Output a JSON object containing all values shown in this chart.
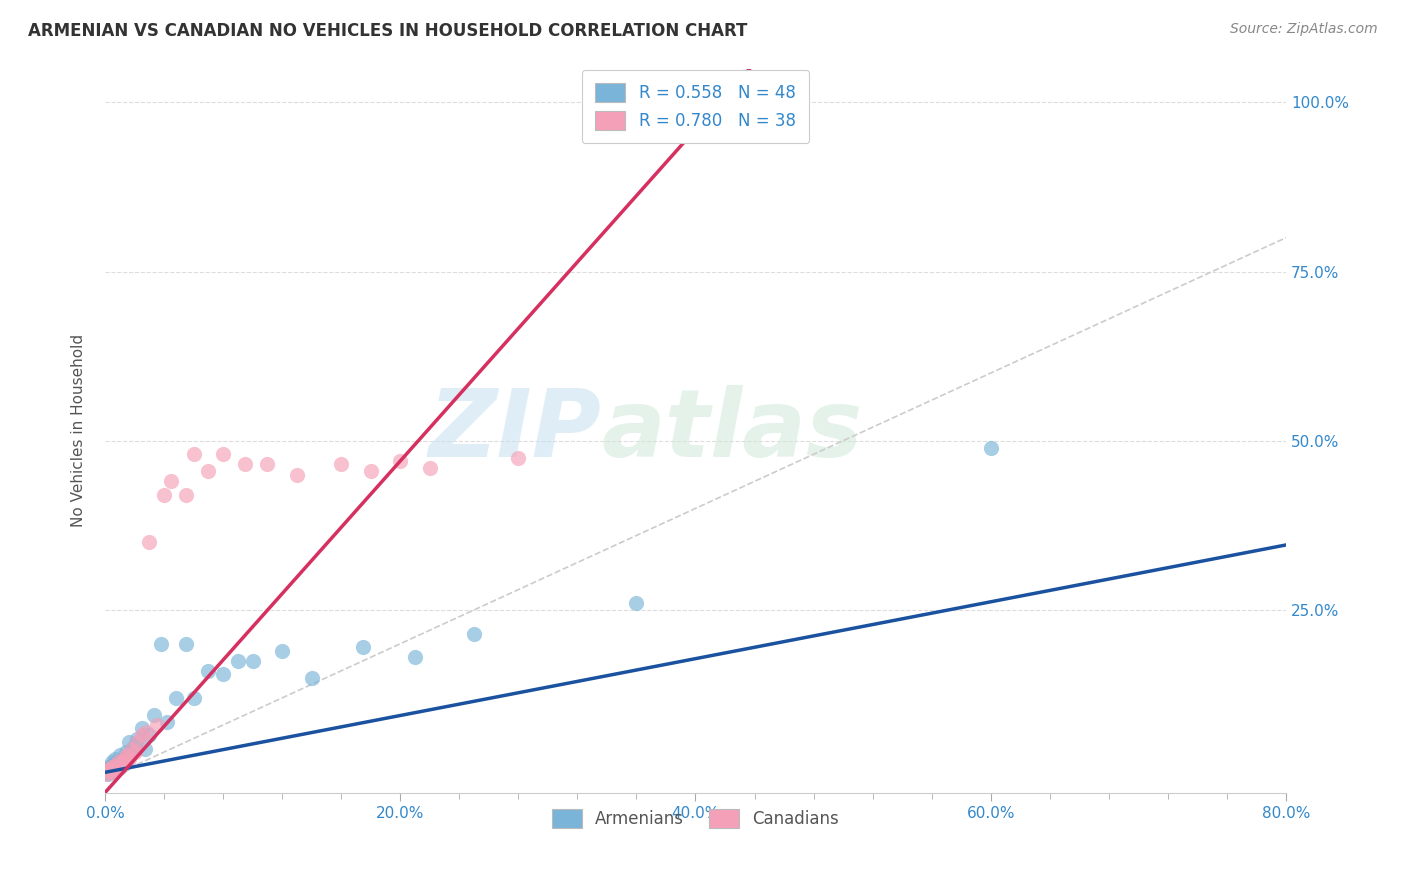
{
  "title": "ARMENIAN VS CANADIAN NO VEHICLES IN HOUSEHOLD CORRELATION CHART",
  "source": "Source: ZipAtlas.com",
  "ylabel": "No Vehicles in Household",
  "xlim": [
    0.0,
    0.8
  ],
  "ylim": [
    -0.02,
    1.05
  ],
  "xtick_labels": [
    "0.0%",
    "",
    "",
    "",
    "",
    "20.0%",
    "",
    "",
    "",
    "",
    "40.0%",
    "",
    "",
    "",
    "",
    "60.0%",
    "",
    "",
    "",
    "",
    "80.0%"
  ],
  "xtick_values": [
    0.0,
    0.04,
    0.08,
    0.12,
    0.16,
    0.2,
    0.24,
    0.28,
    0.32,
    0.36,
    0.4,
    0.44,
    0.48,
    0.52,
    0.56,
    0.6,
    0.64,
    0.68,
    0.72,
    0.76,
    0.8
  ],
  "ytick_labels": [
    "25.0%",
    "50.0%",
    "75.0%",
    "100.0%"
  ],
  "ytick_values": [
    0.25,
    0.5,
    0.75,
    1.0
  ],
  "armenian_color": "#7ab4d8",
  "canadian_color": "#f4a0b8",
  "armenian_line_color": "#1a52a0",
  "canadian_line_color": "#d63060",
  "diagonal_color": "#cccccc",
  "R_armenian": 0.558,
  "N_armenian": 48,
  "R_canadian": 0.78,
  "N_canadian": 38,
  "legend_armenian": "Armenians",
  "legend_canadian": "Canadians",
  "watermark_zip": "ZIP",
  "watermark_atlas": "atlas",
  "arm_slope": 0.42,
  "arm_intercept": 0.01,
  "can_slope": 2.45,
  "can_intercept": -0.02,
  "armenian_x": [
    0.001,
    0.002,
    0.002,
    0.003,
    0.003,
    0.004,
    0.004,
    0.005,
    0.005,
    0.006,
    0.006,
    0.007,
    0.007,
    0.008,
    0.008,
    0.009,
    0.01,
    0.01,
    0.011,
    0.012,
    0.013,
    0.014,
    0.015,
    0.016,
    0.017,
    0.018,
    0.02,
    0.022,
    0.025,
    0.027,
    0.03,
    0.033,
    0.038,
    0.042,
    0.048,
    0.055,
    0.06,
    0.07,
    0.08,
    0.09,
    0.1,
    0.12,
    0.14,
    0.175,
    0.21,
    0.25,
    0.36,
    0.6
  ],
  "armenian_y": [
    0.01,
    0.008,
    0.015,
    0.012,
    0.018,
    0.01,
    0.02,
    0.015,
    0.025,
    0.012,
    0.022,
    0.018,
    0.03,
    0.015,
    0.025,
    0.02,
    0.018,
    0.035,
    0.025,
    0.03,
    0.022,
    0.04,
    0.03,
    0.055,
    0.035,
    0.045,
    0.05,
    0.06,
    0.075,
    0.045,
    0.065,
    0.095,
    0.2,
    0.085,
    0.12,
    0.2,
    0.12,
    0.16,
    0.155,
    0.175,
    0.175,
    0.19,
    0.15,
    0.195,
    0.18,
    0.215,
    0.26,
    0.49
  ],
  "canadian_x": [
    0.001,
    0.002,
    0.003,
    0.004,
    0.005,
    0.006,
    0.007,
    0.008,
    0.009,
    0.01,
    0.011,
    0.012,
    0.013,
    0.014,
    0.015,
    0.016,
    0.018,
    0.02,
    0.022,
    0.025,
    0.028,
    0.03,
    0.035,
    0.04,
    0.045,
    0.055,
    0.06,
    0.07,
    0.08,
    0.095,
    0.11,
    0.13,
    0.16,
    0.18,
    0.2,
    0.22,
    0.28,
    0.38
  ],
  "canadian_y": [
    0.008,
    0.012,
    0.015,
    0.01,
    0.018,
    0.012,
    0.02,
    0.015,
    0.025,
    0.018,
    0.022,
    0.028,
    0.025,
    0.032,
    0.035,
    0.03,
    0.045,
    0.04,
    0.055,
    0.065,
    0.07,
    0.35,
    0.08,
    0.42,
    0.44,
    0.42,
    0.48,
    0.455,
    0.48,
    0.465,
    0.465,
    0.45,
    0.465,
    0.455,
    0.47,
    0.46,
    0.475,
    1.0
  ]
}
